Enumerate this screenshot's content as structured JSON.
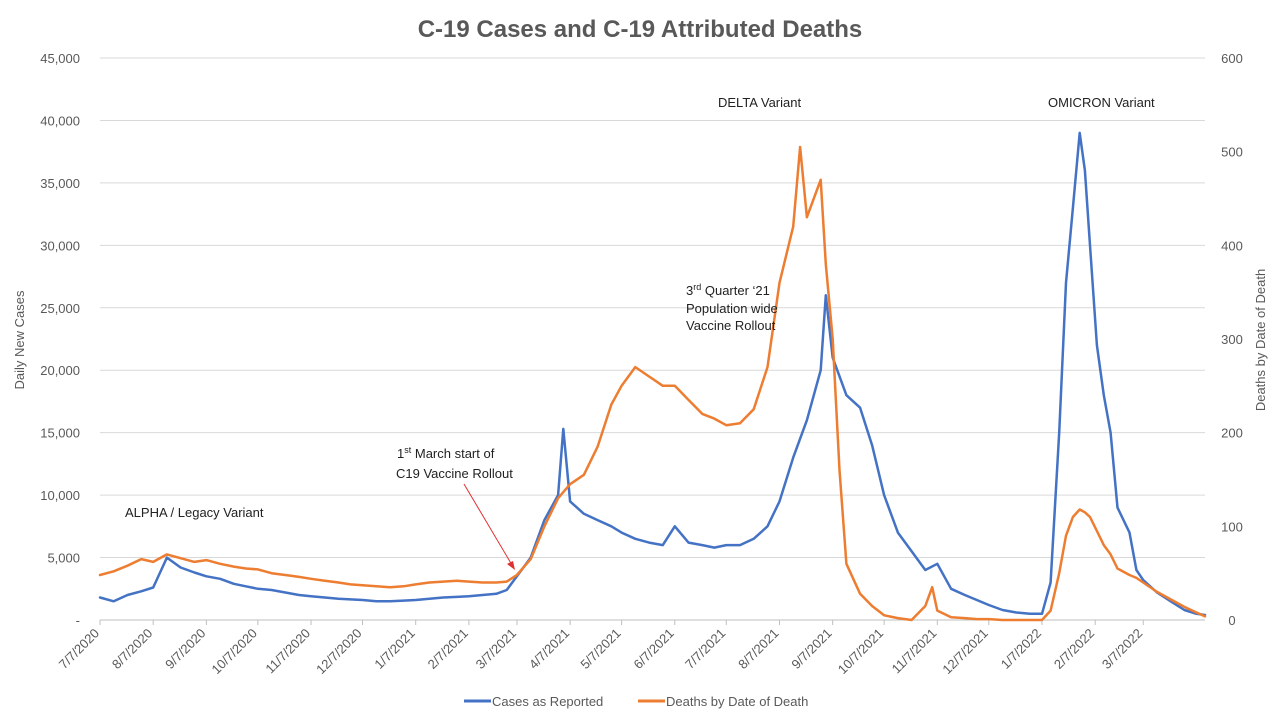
{
  "chart_data": {
    "type": "line",
    "title": "C-19 Cases and C-19 Attributed Deaths",
    "ylabel": "Daily New Cases",
    "y2label": "Deaths by Date of Death",
    "ylim": [
      0,
      45000
    ],
    "y2lim": [
      0,
      600
    ],
    "y_ticks": [
      "-",
      "5,000",
      "10,000",
      "15,000",
      "20,000",
      "25,000",
      "30,000",
      "35,000",
      "40,000",
      "45,000"
    ],
    "y2_ticks": [
      "0",
      "100",
      "200",
      "300",
      "400",
      "500",
      "600"
    ],
    "x_ticks": [
      "7/7/2020",
      "8/7/2020",
      "9/7/2020",
      "10/7/2020",
      "11/7/2020",
      "12/7/2020",
      "1/7/2021",
      "2/7/2021",
      "3/7/2021",
      "4/7/2021",
      "5/7/2021",
      "6/7/2021",
      "7/7/2021",
      "8/7/2021",
      "9/7/2021",
      "10/7/2021",
      "11/7/2021",
      "12/7/2021",
      "1/7/2022",
      "2/7/2022",
      "3/7/2022"
    ],
    "grid": "horizontal",
    "legend_position": "bottom",
    "series": [
      {
        "name": "Cases as Reported",
        "axis": "left",
        "color": "#4472C4",
        "points": [
          [
            "7/7/2020",
            1800
          ],
          [
            "7/15/2020",
            1500
          ],
          [
            "7/23/2020",
            2000
          ],
          [
            "7/31/2020",
            2300
          ],
          [
            "8/7/2020",
            2600
          ],
          [
            "8/15/2020",
            5000
          ],
          [
            "8/23/2020",
            4200
          ],
          [
            "8/31/2020",
            3800
          ],
          [
            "9/7/2020",
            3500
          ],
          [
            "9/15/2020",
            3300
          ],
          [
            "9/23/2020",
            2900
          ],
          [
            "9/30/2020",
            2700
          ],
          [
            "10/7/2020",
            2500
          ],
          [
            "10/15/2020",
            2400
          ],
          [
            "10/23/2020",
            2200
          ],
          [
            "10/31/2020",
            2000
          ],
          [
            "11/7/2020",
            1900
          ],
          [
            "11/15/2020",
            1800
          ],
          [
            "11/23/2020",
            1700
          ],
          [
            "11/30/2020",
            1650
          ],
          [
            "12/7/2020",
            1600
          ],
          [
            "12/15/2020",
            1500
          ],
          [
            "12/23/2020",
            1500
          ],
          [
            "12/31/2020",
            1550
          ],
          [
            "1/7/2021",
            1600
          ],
          [
            "1/15/2021",
            1700
          ],
          [
            "1/23/2021",
            1800
          ],
          [
            "1/31/2021",
            1850
          ],
          [
            "2/7/2021",
            1900
          ],
          [
            "2/15/2021",
            2000
          ],
          [
            "2/23/2021",
            2100
          ],
          [
            "3/1/2021",
            2400
          ],
          [
            "3/7/2021",
            3500
          ],
          [
            "3/15/2021",
            5000
          ],
          [
            "3/23/2021",
            8000
          ],
          [
            "3/31/2021",
            10000
          ],
          [
            "4/3/2021",
            15300
          ],
          [
            "4/7/2021",
            9500
          ],
          [
            "4/15/2021",
            8500
          ],
          [
            "4/23/2021",
            8000
          ],
          [
            "5/1/2021",
            7500
          ],
          [
            "5/7/2021",
            7000
          ],
          [
            "5/15/2021",
            6500
          ],
          [
            "5/23/2021",
            6200
          ],
          [
            "5/31/2021",
            6000
          ],
          [
            "6/7/2021",
            7500
          ],
          [
            "6/15/2021",
            6200
          ],
          [
            "6/23/2021",
            6000
          ],
          [
            "6/30/2021",
            5800
          ],
          [
            "7/7/2021",
            6000
          ],
          [
            "7/15/2021",
            6000
          ],
          [
            "7/23/2021",
            6500
          ],
          [
            "7/31/2021",
            7500
          ],
          [
            "8/7/2021",
            9500
          ],
          [
            "8/15/2021",
            13000
          ],
          [
            "8/23/2021",
            16000
          ],
          [
            "8/31/2021",
            20000
          ],
          [
            "9/3/2021",
            26000
          ],
          [
            "9/7/2021",
            21000
          ],
          [
            "9/15/2021",
            18000
          ],
          [
            "9/23/2021",
            17000
          ],
          [
            "9/30/2021",
            14000
          ],
          [
            "10/7/2021",
            10000
          ],
          [
            "10/15/2021",
            7000
          ],
          [
            "10/23/2021",
            5500
          ],
          [
            "10/31/2021",
            4000
          ],
          [
            "11/7/2021",
            4500
          ],
          [
            "11/15/2021",
            2500
          ],
          [
            "11/23/2021",
            2000
          ],
          [
            "11/30/2021",
            1600
          ],
          [
            "12/7/2021",
            1200
          ],
          [
            "12/15/2021",
            800
          ],
          [
            "12/23/2021",
            600
          ],
          [
            "12/31/2021",
            500
          ],
          [
            "1/7/2022",
            500
          ],
          [
            "1/12/2022",
            3000
          ],
          [
            "1/17/2022",
            15000
          ],
          [
            "1/21/2022",
            27000
          ],
          [
            "1/25/2022",
            33000
          ],
          [
            "1/29/2022",
            39000
          ],
          [
            "2/1/2022",
            36000
          ],
          [
            "2/4/2022",
            30000
          ],
          [
            "2/8/2022",
            22000
          ],
          [
            "2/12/2022",
            18000
          ],
          [
            "2/16/2022",
            15000
          ],
          [
            "2/20/2022",
            9000
          ],
          [
            "2/27/2022",
            7000
          ],
          [
            "3/3/2022",
            4000
          ],
          [
            "3/7/2022",
            3200
          ],
          [
            "3/15/2022",
            2200
          ],
          [
            "3/23/2022",
            1500
          ],
          [
            "3/31/2022",
            800
          ],
          [
            "4/7/2022",
            500
          ],
          [
            "4/12/2022",
            400
          ]
        ]
      },
      {
        "name": "Deaths by Date of Death",
        "axis": "right",
        "color": "#ED7D31",
        "points": [
          [
            "7/7/2020",
            48
          ],
          [
            "7/15/2020",
            52
          ],
          [
            "7/23/2020",
            58
          ],
          [
            "7/31/2020",
            65
          ],
          [
            "8/7/2020",
            62
          ],
          [
            "8/15/2020",
            70
          ],
          [
            "8/23/2020",
            66
          ],
          [
            "8/31/2020",
            62
          ],
          [
            "9/7/2020",
            64
          ],
          [
            "9/15/2020",
            60
          ],
          [
            "9/23/2020",
            57
          ],
          [
            "9/30/2020",
            55
          ],
          [
            "10/7/2020",
            54
          ],
          [
            "10/15/2020",
            50
          ],
          [
            "10/23/2020",
            48
          ],
          [
            "10/31/2020",
            46
          ],
          [
            "11/7/2020",
            44
          ],
          [
            "11/15/2020",
            42
          ],
          [
            "11/23/2020",
            40
          ],
          [
            "11/30/2020",
            38
          ],
          [
            "12/7/2020",
            37
          ],
          [
            "12/15/2020",
            36
          ],
          [
            "12/23/2020",
            35
          ],
          [
            "12/31/2020",
            36
          ],
          [
            "1/7/2021",
            38
          ],
          [
            "1/15/2021",
            40
          ],
          [
            "1/23/2021",
            41
          ],
          [
            "1/31/2021",
            42
          ],
          [
            "2/7/2021",
            41
          ],
          [
            "2/15/2021",
            40
          ],
          [
            "2/23/2021",
            40
          ],
          [
            "3/1/2021",
            41
          ],
          [
            "3/7/2021",
            48
          ],
          [
            "3/15/2021",
            65
          ],
          [
            "3/23/2021",
            100
          ],
          [
            "3/31/2021",
            130
          ],
          [
            "4/7/2021",
            145
          ],
          [
            "4/15/2021",
            155
          ],
          [
            "4/23/2021",
            185
          ],
          [
            "5/1/2021",
            230
          ],
          [
            "5/7/2021",
            250
          ],
          [
            "5/15/2021",
            270
          ],
          [
            "5/23/2021",
            260
          ],
          [
            "5/31/2021",
            250
          ],
          [
            "6/7/2021",
            250
          ],
          [
            "6/15/2021",
            235
          ],
          [
            "6/23/2021",
            220
          ],
          [
            "6/30/2021",
            215
          ],
          [
            "7/7/2021",
            208
          ],
          [
            "7/15/2021",
            210
          ],
          [
            "7/23/2021",
            225
          ],
          [
            "7/31/2021",
            270
          ],
          [
            "8/7/2021",
            360
          ],
          [
            "8/15/2021",
            420
          ],
          [
            "8/19/2021",
            505
          ],
          [
            "8/23/2021",
            430
          ],
          [
            "8/31/2021",
            470
          ],
          [
            "9/3/2021",
            380
          ],
          [
            "9/7/2021",
            300
          ],
          [
            "9/11/2021",
            160
          ],
          [
            "9/15/2021",
            60
          ],
          [
            "9/23/2021",
            28
          ],
          [
            "9/30/2021",
            15
          ],
          [
            "10/7/2021",
            5
          ],
          [
            "10/15/2021",
            2
          ],
          [
            "10/23/2021",
            0
          ],
          [
            "10/31/2021",
            15
          ],
          [
            "11/4/2021",
            35
          ],
          [
            "11/7/2021",
            10
          ],
          [
            "11/15/2021",
            3
          ],
          [
            "11/23/2021",
            2
          ],
          [
            "11/30/2021",
            1
          ],
          [
            "12/7/2021",
            1
          ],
          [
            "12/15/2021",
            0
          ],
          [
            "12/23/2021",
            0
          ],
          [
            "12/31/2021",
            0
          ],
          [
            "1/7/2022",
            0
          ],
          [
            "1/12/2022",
            10
          ],
          [
            "1/17/2022",
            50
          ],
          [
            "1/21/2022",
            90
          ],
          [
            "1/25/2022",
            110
          ],
          [
            "1/29/2022",
            118
          ],
          [
            "2/1/2022",
            115
          ],
          [
            "2/4/2022",
            110
          ],
          [
            "2/8/2022",
            95
          ],
          [
            "2/12/2022",
            80
          ],
          [
            "2/16/2022",
            70
          ],
          [
            "2/20/2022",
            55
          ],
          [
            "2/27/2022",
            48
          ],
          [
            "3/3/2022",
            45
          ],
          [
            "3/7/2022",
            40
          ],
          [
            "3/15/2022",
            30
          ],
          [
            "3/23/2022",
            22
          ],
          [
            "3/31/2022",
            14
          ],
          [
            "4/7/2022",
            8
          ],
          [
            "4/12/2022",
            4
          ]
        ]
      }
    ],
    "annotations": {
      "alpha": "ALPHA / Legacy Variant",
      "delta": "DELTA Variant",
      "omicron": "OMICRON Variant",
      "rollout_1_sup": "st",
      "rollout_1_line1_pre": "1",
      "rollout_1_line1_post": " March start of",
      "rollout_1_line2": "C19 Vaccine Rollout",
      "rollout_3_pre": "3",
      "rollout_3_sup": "rd",
      "rollout_3_post": " Quarter ‘21",
      "rollout_3_line2": "Population wide",
      "rollout_3_line3": "Vaccine Rollout"
    }
  }
}
